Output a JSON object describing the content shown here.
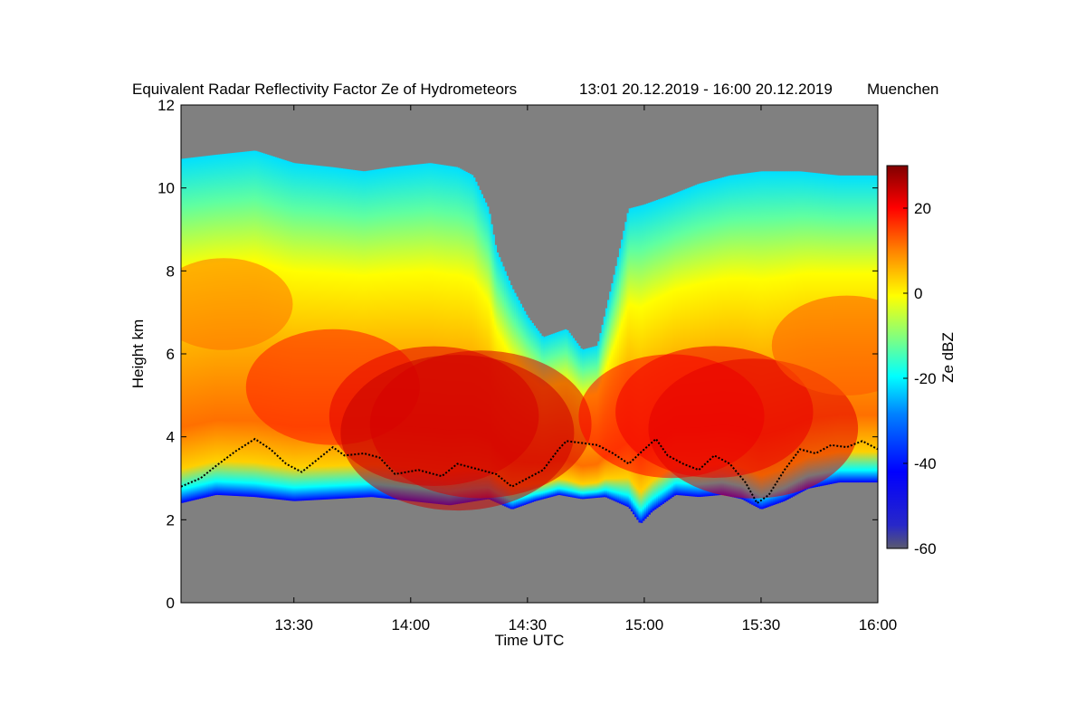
{
  "chart_data": {
    "type": "heatmap",
    "title": "Equivalent Radar Reflectivity Factor Ze of Hydrometeors",
    "period": "13:01 20.12.2019 - 16:00 20.12.2019",
    "location": "Muenchen",
    "xlabel": "Time UTC",
    "ylabel": "Height km",
    "colorbar_label": "Ze dBZ",
    "x_range_minutes": [
      781,
      960
    ],
    "x_ticks": [
      {
        "value": 810,
        "label": "13:30"
      },
      {
        "value": 840,
        "label": "14:00"
      },
      {
        "value": 870,
        "label": "14:30"
      },
      {
        "value": 900,
        "label": "15:00"
      },
      {
        "value": 930,
        "label": "15:30"
      },
      {
        "value": 960,
        "label": "16:00"
      }
    ],
    "ylim": [
      0,
      12
    ],
    "y_ticks": [
      0,
      2,
      4,
      6,
      8,
      10,
      12
    ],
    "zlim": [
      -60,
      30
    ],
    "z_ticks": [
      20,
      0,
      -20,
      -40,
      -60
    ],
    "background_color": "#808080",
    "colormap": [
      "#5a5a6e",
      "#0000ff",
      "#00ffff",
      "#ffff00",
      "#ff0000",
      "#800000"
    ],
    "echo_top_km": [
      [
        781,
        10.7
      ],
      [
        790,
        10.8
      ],
      [
        800,
        10.9
      ],
      [
        810,
        10.6
      ],
      [
        820,
        10.5
      ],
      [
        828,
        10.4
      ],
      [
        835,
        10.5
      ],
      [
        845,
        10.6
      ],
      [
        852,
        10.5
      ],
      [
        856,
        10.3
      ],
      [
        860,
        9.5
      ],
      [
        862,
        8.5
      ],
      [
        866,
        7.6
      ],
      [
        870,
        6.9
      ],
      [
        874,
        6.4
      ],
      [
        877,
        6.5
      ],
      [
        880,
        6.6
      ],
      [
        884,
        6.1
      ],
      [
        888,
        6.2
      ],
      [
        892,
        7.8
      ],
      [
        896,
        9.5
      ],
      [
        900,
        9.6
      ],
      [
        906,
        9.8
      ],
      [
        914,
        10.1
      ],
      [
        922,
        10.3
      ],
      [
        930,
        10.4
      ],
      [
        940,
        10.4
      ],
      [
        950,
        10.3
      ],
      [
        960,
        10.3
      ]
    ],
    "echo_base_km": [
      [
        781,
        2.4
      ],
      [
        790,
        2.6
      ],
      [
        800,
        2.55
      ],
      [
        810,
        2.45
      ],
      [
        820,
        2.5
      ],
      [
        830,
        2.55
      ],
      [
        840,
        2.45
      ],
      [
        850,
        2.35
      ],
      [
        860,
        2.5
      ],
      [
        866,
        2.25
      ],
      [
        872,
        2.45
      ],
      [
        878,
        2.6
      ],
      [
        884,
        2.5
      ],
      [
        890,
        2.55
      ],
      [
        896,
        2.3
      ],
      [
        899,
        1.9
      ],
      [
        902,
        2.2
      ],
      [
        908,
        2.6
      ],
      [
        914,
        2.55
      ],
      [
        920,
        2.6
      ],
      [
        925,
        2.5
      ],
      [
        930,
        2.25
      ],
      [
        936,
        2.45
      ],
      [
        942,
        2.75
      ],
      [
        950,
        2.9
      ],
      [
        960,
        2.9
      ]
    ],
    "melting_layer_km": [
      [
        781,
        2.8
      ],
      [
        786,
        3.0
      ],
      [
        790,
        3.3
      ],
      [
        795,
        3.65
      ],
      [
        800,
        3.95
      ],
      [
        804,
        3.7
      ],
      [
        808,
        3.35
      ],
      [
        812,
        3.15
      ],
      [
        816,
        3.45
      ],
      [
        820,
        3.75
      ],
      [
        823,
        3.55
      ],
      [
        828,
        3.6
      ],
      [
        832,
        3.5
      ],
      [
        836,
        3.1
      ],
      [
        842,
        3.2
      ],
      [
        848,
        3.05
      ],
      [
        852,
        3.35
      ],
      [
        856,
        3.25
      ],
      [
        862,
        3.1
      ],
      [
        866,
        2.8
      ],
      [
        870,
        3.0
      ],
      [
        874,
        3.2
      ],
      [
        878,
        3.7
      ],
      [
        880,
        3.9
      ],
      [
        884,
        3.85
      ],
      [
        888,
        3.8
      ],
      [
        892,
        3.6
      ],
      [
        896,
        3.35
      ],
      [
        900,
        3.7
      ],
      [
        903,
        3.95
      ],
      [
        906,
        3.55
      ],
      [
        910,
        3.35
      ],
      [
        914,
        3.2
      ],
      [
        918,
        3.55
      ],
      [
        922,
        3.35
      ],
      [
        926,
        2.9
      ],
      [
        929,
        2.4
      ],
      [
        932,
        2.6
      ],
      [
        936,
        3.2
      ],
      [
        940,
        3.7
      ],
      [
        944,
        3.6
      ],
      [
        948,
        3.8
      ],
      [
        952,
        3.75
      ],
      [
        956,
        3.9
      ],
      [
        960,
        3.7
      ]
    ],
    "reflectivity_maxima": [
      {
        "t": 820,
        "h": 5.2,
        "ze": 10
      },
      {
        "t": 846,
        "h": 4.5,
        "ze": 16
      },
      {
        "t": 852,
        "h": 4.1,
        "ze": 20
      },
      {
        "t": 858,
        "h": 4.3,
        "ze": 18
      },
      {
        "t": 907,
        "h": 4.5,
        "ze": 12
      },
      {
        "t": 918,
        "h": 4.6,
        "ze": 14
      },
      {
        "t": 928,
        "h": 4.2,
        "ze": 16
      },
      {
        "t": 952,
        "h": 6.2,
        "ze": 6
      },
      {
        "t": 792,
        "h": 7.2,
        "ze": 4
      }
    ]
  }
}
